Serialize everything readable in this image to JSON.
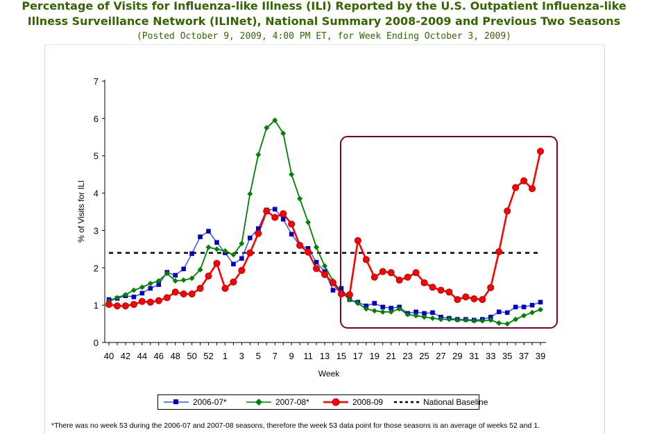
{
  "header": {
    "title_line1": "Percentage of Visits for Influenza-like Illness (ILI) Reported by the U.S. Outpatient Influenza-like",
    "title_line2": "Illness Surveillance Network (ILINet), National Summary 2008-2009 and Previous Two Seasons",
    "subtitle": "(Posted October 9, 2009, 4:00 PM ET, for Week Ending October 3, 2009)"
  },
  "footnote": "*There was no week 53 during the 2006-07 and 2007-08 seasons, therefore the week 53 data point for those seasons is an average of weeks 52 and 1.",
  "colors": {
    "s2006": "#0000c0",
    "s2006_line": "#3355ee",
    "s2007": "#008000",
    "s2008": "#ff0000",
    "baseline": "#000000",
    "highlight_box": "#7a0033"
  },
  "chart_data": {
    "type": "line",
    "xlabel": "Week",
    "ylabel": "% of Visits for ILI",
    "ylim": [
      0,
      7
    ],
    "yticks": [
      0,
      1,
      2,
      3,
      4,
      5,
      6,
      7
    ],
    "grid": false,
    "legend_position": "bottom",
    "x": [
      "40",
      "41",
      "42",
      "43",
      "44",
      "45",
      "46",
      "47",
      "48",
      "49",
      "50",
      "51",
      "52",
      "53",
      "1",
      "2",
      "3",
      "4",
      "5",
      "6",
      "7",
      "8",
      "9",
      "10",
      "11",
      "12",
      "13",
      "14",
      "15",
      "16",
      "17",
      "18",
      "19",
      "20",
      "21",
      "22",
      "23",
      "24",
      "25",
      "26",
      "27",
      "28",
      "29",
      "30",
      "31",
      "32",
      "33",
      "34",
      "35",
      "36",
      "37",
      "38",
      "39"
    ],
    "xtick_labels": [
      "40",
      "42",
      "44",
      "46",
      "48",
      "50",
      "52",
      "1",
      "3",
      "5",
      "7",
      "9",
      "11",
      "13",
      "15",
      "17",
      "19",
      "21",
      "23",
      "25",
      "27",
      "29",
      "31",
      "33",
      "35",
      "37",
      "39"
    ],
    "series": [
      {
        "name": "2006-07*",
        "values": [
          1.15,
          1.18,
          1.25,
          1.22,
          1.32,
          1.45,
          1.55,
          1.88,
          1.8,
          1.97,
          2.38,
          2.83,
          2.98,
          2.68,
          2.4,
          2.1,
          2.25,
          2.8,
          3.05,
          3.55,
          3.57,
          3.3,
          2.9,
          2.6,
          2.52,
          2.15,
          1.9,
          1.4,
          1.45,
          1.15,
          1.08,
          0.98,
          1.05,
          0.95,
          0.92,
          0.95,
          0.78,
          0.82,
          0.78,
          0.8,
          0.68,
          0.65,
          0.62,
          0.62,
          0.6,
          0.62,
          0.68,
          0.82,
          0.8,
          0.95,
          0.95,
          1.0,
          1.08
        ]
      },
      {
        "name": "2007-08*",
        "values": [
          1.1,
          1.2,
          1.28,
          1.4,
          1.48,
          1.58,
          1.65,
          1.85,
          1.65,
          1.67,
          1.72,
          1.95,
          2.55,
          2.5,
          2.45,
          2.35,
          2.65,
          3.98,
          5.03,
          5.75,
          5.95,
          5.6,
          4.5,
          3.85,
          3.22,
          2.55,
          2.05,
          1.65,
          1.35,
          1.15,
          1.05,
          0.9,
          0.85,
          0.82,
          0.82,
          0.9,
          0.75,
          0.72,
          0.68,
          0.65,
          0.62,
          0.62,
          0.6,
          0.6,
          0.58,
          0.58,
          0.6,
          0.52,
          0.5,
          0.62,
          0.72,
          0.8,
          0.88
        ]
      },
      {
        "name": "2008-09",
        "values": [
          1.02,
          0.98,
          0.98,
          1.02,
          1.1,
          1.08,
          1.12,
          1.2,
          1.35,
          1.3,
          1.3,
          1.45,
          1.78,
          2.12,
          1.45,
          1.62,
          1.93,
          2.4,
          2.92,
          3.52,
          3.35,
          3.45,
          3.17,
          2.6,
          2.42,
          1.98,
          1.82,
          1.6,
          1.3,
          1.28,
          2.73,
          2.22,
          1.75,
          1.9,
          1.87,
          1.67,
          1.75,
          1.87,
          1.6,
          1.48,
          1.4,
          1.35,
          1.15,
          1.22,
          1.17,
          1.15,
          1.47,
          2.43,
          3.52,
          4.15,
          4.33,
          4.12,
          5.12
        ]
      }
    ],
    "baseline": {
      "name": "National Baseline",
      "value": 2.4
    }
  }
}
